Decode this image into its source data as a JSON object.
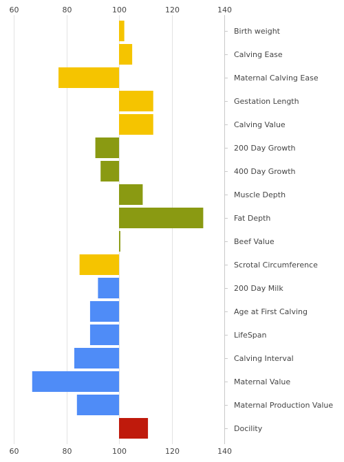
{
  "chart_data": {
    "type": "bar",
    "orientation": "horizontal",
    "title": "",
    "xlabel": "",
    "ylabel": "",
    "baseline": 100,
    "xlim": [
      60,
      140
    ],
    "x_ticks": [
      60,
      80,
      100,
      120,
      140
    ],
    "x_tick_labels": [
      "60",
      "80",
      "100",
      "120",
      "140"
    ],
    "tick_label_positions": [
      "top",
      "bottom"
    ],
    "grid": true,
    "legend": "none",
    "categories": [
      "Birth weight",
      "Calving Ease",
      "Maternal Calving Ease",
      "Gestation Length",
      "Calving Value",
      "200 Day Growth",
      "400 Day Growth",
      "Muscle Depth",
      "Fat Depth",
      "Beef Value",
      "Scrotal Circumference",
      "200 Day Milk",
      "Age at First Calving",
      "LifeSpan",
      "Calving Interval",
      "Maternal Value",
      "Maternal Production Value",
      "Docility"
    ],
    "values": [
      102,
      105,
      77,
      113,
      113,
      91,
      93,
      109,
      132,
      100.5,
      85,
      92,
      89,
      89,
      83,
      67,
      84,
      111
    ],
    "colors": [
      "#f5c400",
      "#f5c400",
      "#f5c400",
      "#f5c400",
      "#f5c400",
      "#8a9a12",
      "#8a9a12",
      "#8a9a12",
      "#8a9a12",
      "#8a9a12",
      "#f5c400",
      "#4f8cf7",
      "#4f8cf7",
      "#4f8cf7",
      "#4f8cf7",
      "#4f8cf7",
      "#4f8cf7",
      "#bf1a0c"
    ]
  }
}
